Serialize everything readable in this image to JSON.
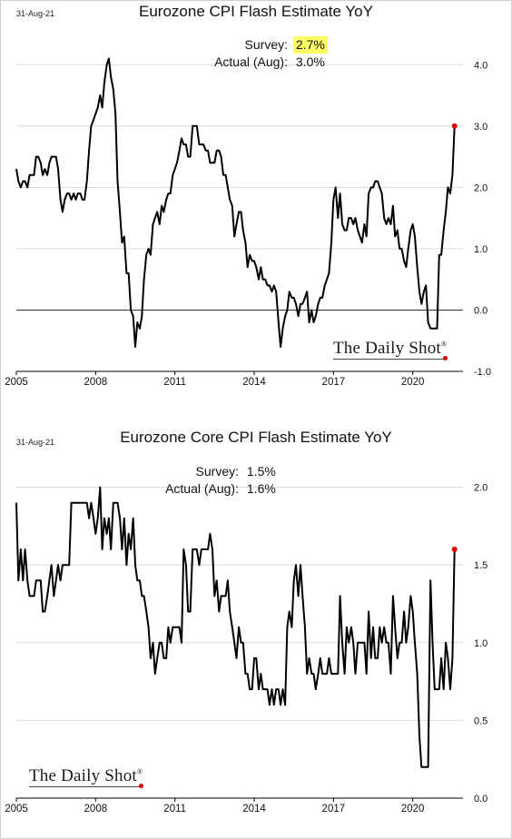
{
  "chart_data": [
    {
      "type": "line",
      "title": "Eurozone CPI Flash Estimate YoY",
      "date_stamp": "31-Aug-21",
      "survey_label": "Survey:",
      "survey_value": "2.7%",
      "actual_label": "Actual (Aug):",
      "actual_value": "3.0%",
      "highlight_survey": true,
      "brand": "The Daily Shot",
      "xlim": [
        2005,
        2021.9
      ],
      "ylim": [
        -1.0,
        4.3
      ],
      "x_ticks": [
        "2005",
        "2008",
        "2011",
        "2014",
        "2017",
        "2020"
      ],
      "y_ticks": [
        "4.0",
        "3.0",
        "2.0",
        "1.0",
        "0.0",
        "-1.0"
      ],
      "zero_line": true,
      "grid": "horizontal",
      "line_color": "#000000",
      "marker_color": "#e00000",
      "series": [
        {
          "x": [
            2005.0,
            2005.08,
            2005.17,
            2005.25,
            2005.33,
            2005.42,
            2005.5,
            2005.58,
            2005.67,
            2005.75,
            2005.83,
            2005.92,
            2006.0,
            2006.08,
            2006.17,
            2006.25,
            2006.33,
            2006.42,
            2006.5,
            2006.58,
            2006.67,
            2006.75,
            2006.83,
            2006.92,
            2007.0,
            2007.08,
            2007.17,
            2007.25,
            2007.33,
            2007.42,
            2007.5,
            2007.58,
            2007.67,
            2007.75,
            2007.83,
            2007.92,
            2008.0,
            2008.08,
            2008.17,
            2008.25,
            2008.33,
            2008.42,
            2008.5,
            2008.58,
            2008.67,
            2008.75,
            2008.83,
            2008.92,
            2009.0,
            2009.08,
            2009.17,
            2009.25,
            2009.33,
            2009.42,
            2009.5,
            2009.58,
            2009.67,
            2009.75,
            2009.83,
            2009.92,
            2010.0,
            2010.08,
            2010.17,
            2010.25,
            2010.33,
            2010.42,
            2010.5,
            2010.58,
            2010.67,
            2010.75,
            2010.83,
            2010.92,
            2011.0,
            2011.08,
            2011.17,
            2011.25,
            2011.33,
            2011.42,
            2011.5,
            2011.58,
            2011.67,
            2011.75,
            2011.83,
            2011.92,
            2012.0,
            2012.08,
            2012.17,
            2012.25,
            2012.33,
            2012.42,
            2012.5,
            2012.58,
            2012.67,
            2012.75,
            2012.83,
            2012.92,
            2013.0,
            2013.08,
            2013.17,
            2013.25,
            2013.33,
            2013.42,
            2013.5,
            2013.58,
            2013.67,
            2013.75,
            2013.83,
            2013.92,
            2014.0,
            2014.08,
            2014.17,
            2014.25,
            2014.33,
            2014.42,
            2014.5,
            2014.58,
            2014.67,
            2014.75,
            2014.83,
            2014.92,
            2015.0,
            2015.08,
            2015.17,
            2015.25,
            2015.33,
            2015.42,
            2015.5,
            2015.58,
            2015.67,
            2015.75,
            2015.83,
            2015.92,
            2016.0,
            2016.08,
            2016.17,
            2016.25,
            2016.33,
            2016.42,
            2016.5,
            2016.58,
            2016.67,
            2016.75,
            2016.83,
            2016.92,
            2017.0,
            2017.08,
            2017.17,
            2017.25,
            2017.33,
            2017.42,
            2017.5,
            2017.58,
            2017.67,
            2017.75,
            2017.83,
            2017.92,
            2018.0,
            2018.08,
            2018.17,
            2018.25,
            2018.33,
            2018.42,
            2018.5,
            2018.58,
            2018.67,
            2018.75,
            2018.83,
            2018.92,
            2019.0,
            2019.08,
            2019.17,
            2019.25,
            2019.33,
            2019.42,
            2019.5,
            2019.58,
            2019.67,
            2019.75,
            2019.83,
            2019.92,
            2020.0,
            2020.08,
            2020.17,
            2020.25,
            2020.33,
            2020.42,
            2020.5,
            2020.58,
            2020.67,
            2020.75,
            2020.83,
            2020.92,
            2021.0,
            2021.08,
            2021.17,
            2021.25,
            2021.33,
            2021.42,
            2021.5,
            2021.58
          ],
          "y": [
            2.3,
            2.1,
            2.0,
            2.1,
            2.1,
            2.0,
            2.2,
            2.2,
            2.2,
            2.5,
            2.5,
            2.4,
            2.2,
            2.3,
            2.2,
            2.4,
            2.5,
            2.5,
            2.5,
            2.3,
            1.8,
            1.6,
            1.8,
            1.9,
            1.9,
            1.8,
            1.9,
            1.8,
            1.9,
            1.9,
            1.8,
            1.8,
            2.1,
            2.6,
            3.0,
            3.1,
            3.2,
            3.3,
            3.5,
            3.3,
            3.7,
            4.0,
            4.1,
            3.8,
            3.6,
            3.2,
            2.1,
            1.6,
            1.1,
            1.2,
            0.6,
            0.6,
            0.0,
            -0.1,
            -0.6,
            -0.2,
            -0.3,
            -0.1,
            0.5,
            0.9,
            1.0,
            0.9,
            1.4,
            1.5,
            1.6,
            1.4,
            1.7,
            1.6,
            1.8,
            1.9,
            1.9,
            2.2,
            2.3,
            2.4,
            2.6,
            2.8,
            2.7,
            2.7,
            2.5,
            2.5,
            3.0,
            3.0,
            3.0,
            2.7,
            2.7,
            2.7,
            2.6,
            2.6,
            2.4,
            2.4,
            2.4,
            2.6,
            2.6,
            2.5,
            2.2,
            2.2,
            2.0,
            1.8,
            1.7,
            1.2,
            1.4,
            1.6,
            1.6,
            1.3,
            1.1,
            0.7,
            0.9,
            0.8,
            0.8,
            0.7,
            0.5,
            0.7,
            0.5,
            0.5,
            0.4,
            0.4,
            0.3,
            0.4,
            0.3,
            -0.2,
            -0.6,
            -0.3,
            -0.1,
            0.0,
            0.3,
            0.2,
            0.2,
            0.1,
            -0.1,
            0.1,
            0.1,
            0.2,
            0.3,
            -0.2,
            0.0,
            -0.2,
            -0.1,
            0.1,
            0.2,
            0.2,
            0.4,
            0.5,
            0.6,
            1.1,
            1.8,
            2.0,
            1.5,
            1.9,
            1.4,
            1.3,
            1.3,
            1.5,
            1.5,
            1.4,
            1.5,
            1.3,
            1.2,
            1.1,
            1.4,
            1.2,
            1.9,
            2.0,
            2.0,
            2.1,
            2.1,
            2.0,
            1.9,
            1.5,
            1.4,
            1.5,
            1.4,
            1.7,
            1.2,
            1.3,
            1.0,
            1.0,
            0.8,
            0.7,
            1.0,
            1.3,
            1.4,
            1.2,
            0.7,
            0.3,
            0.1,
            0.3,
            0.4,
            -0.2,
            -0.3,
            -0.3,
            -0.3,
            -0.3,
            0.9,
            0.9,
            1.3,
            1.6,
            2.0,
            1.9,
            2.2,
            3.0
          ]
        }
      ]
    },
    {
      "type": "line",
      "title": "Eurozone Core CPI Flash Estimate YoY",
      "date_stamp": "31-Aug-21",
      "survey_label": "Survey:",
      "survey_value": "1.5%",
      "actual_label": "Actual (Aug):",
      "actual_value": "1.6%",
      "highlight_survey": false,
      "brand": "The Daily Shot",
      "xlim": [
        2005,
        2021.9
      ],
      "ylim": [
        0.0,
        2.05
      ],
      "x_ticks": [
        "2005",
        "2008",
        "2011",
        "2014",
        "2017",
        "2020"
      ],
      "y_ticks": [
        "2.0",
        "1.5",
        "1.0",
        "0.5",
        "0.0"
      ],
      "zero_line": false,
      "grid": "horizontal",
      "line_color": "#000000",
      "marker_color": "#e00000",
      "series": [
        {
          "x": [
            2005.0,
            2005.08,
            2005.17,
            2005.25,
            2005.33,
            2005.42,
            2005.5,
            2005.58,
            2005.67,
            2005.75,
            2005.83,
            2005.92,
            2006.0,
            2006.08,
            2006.17,
            2006.25,
            2006.33,
            2006.42,
            2006.5,
            2006.58,
            2006.67,
            2006.75,
            2006.83,
            2006.92,
            2007.0,
            2007.08,
            2007.17,
            2007.25,
            2007.33,
            2007.42,
            2007.5,
            2007.58,
            2007.67,
            2007.75,
            2007.83,
            2007.92,
            2008.0,
            2008.08,
            2008.17,
            2008.25,
            2008.33,
            2008.42,
            2008.5,
            2008.58,
            2008.67,
            2008.75,
            2008.83,
            2008.92,
            2009.0,
            2009.08,
            2009.17,
            2009.25,
            2009.33,
            2009.42,
            2009.5,
            2009.58,
            2009.67,
            2009.75,
            2009.83,
            2009.92,
            2010.0,
            2010.08,
            2010.17,
            2010.25,
            2010.33,
            2010.42,
            2010.5,
            2010.58,
            2010.67,
            2010.75,
            2010.83,
            2010.92,
            2011.0,
            2011.08,
            2011.17,
            2011.25,
            2011.33,
            2011.42,
            2011.5,
            2011.58,
            2011.67,
            2011.75,
            2011.83,
            2011.92,
            2012.0,
            2012.08,
            2012.17,
            2012.25,
            2012.33,
            2012.42,
            2012.5,
            2012.58,
            2012.67,
            2012.75,
            2012.83,
            2012.92,
            2013.0,
            2013.08,
            2013.17,
            2013.25,
            2013.33,
            2013.42,
            2013.5,
            2013.58,
            2013.67,
            2013.75,
            2013.83,
            2013.92,
            2014.0,
            2014.08,
            2014.17,
            2014.25,
            2014.33,
            2014.42,
            2014.5,
            2014.58,
            2014.67,
            2014.75,
            2014.83,
            2014.92,
            2015.0,
            2015.08,
            2015.17,
            2015.25,
            2015.33,
            2015.42,
            2015.5,
            2015.58,
            2015.67,
            2015.75,
            2015.83,
            2015.92,
            2016.0,
            2016.08,
            2016.17,
            2016.25,
            2016.33,
            2016.42,
            2016.5,
            2016.58,
            2016.67,
            2016.75,
            2016.83,
            2016.92,
            2017.0,
            2017.08,
            2017.17,
            2017.25,
            2017.33,
            2017.42,
            2017.5,
            2017.58,
            2017.67,
            2017.75,
            2017.83,
            2017.92,
            2018.0,
            2018.08,
            2018.17,
            2018.25,
            2018.33,
            2018.42,
            2018.5,
            2018.58,
            2018.67,
            2018.75,
            2018.83,
            2018.92,
            2019.0,
            2019.08,
            2019.17,
            2019.25,
            2019.33,
            2019.42,
            2019.5,
            2019.58,
            2019.67,
            2019.75,
            2019.83,
            2019.92,
            2020.0,
            2020.08,
            2020.17,
            2020.25,
            2020.33,
            2020.42,
            2020.5,
            2020.58,
            2020.67,
            2020.75,
            2020.83,
            2020.92,
            2021.0,
            2021.08,
            2021.17,
            2021.25,
            2021.33,
            2021.42,
            2021.5,
            2021.58
          ],
          "y": [
            1.9,
            1.4,
            1.6,
            1.4,
            1.6,
            1.4,
            1.3,
            1.3,
            1.3,
            1.4,
            1.4,
            1.4,
            1.2,
            1.2,
            1.3,
            1.4,
            1.5,
            1.3,
            1.4,
            1.5,
            1.4,
            1.5,
            1.5,
            1.5,
            1.5,
            1.9,
            1.9,
            1.9,
            1.9,
            1.9,
            1.9,
            1.9,
            1.9,
            1.8,
            1.9,
            1.8,
            1.7,
            1.8,
            2.0,
            1.6,
            1.8,
            1.7,
            1.8,
            1.6,
            1.9,
            1.9,
            1.9,
            1.8,
            1.6,
            1.8,
            1.5,
            1.7,
            1.6,
            1.8,
            1.5,
            1.4,
            1.4,
            1.3,
            1.3,
            1.2,
            1.1,
            0.9,
            1.0,
            0.8,
            0.9,
            1.0,
            1.0,
            0.9,
            0.9,
            1.1,
            1.0,
            1.1,
            1.1,
            1.1,
            1.1,
            1.0,
            1.6,
            1.5,
            1.2,
            1.2,
            1.6,
            1.6,
            1.6,
            1.5,
            1.6,
            1.6,
            1.6,
            1.6,
            1.7,
            1.6,
            1.3,
            1.4,
            1.2,
            1.3,
            1.3,
            1.3,
            1.4,
            1.2,
            1.1,
            1.0,
            0.9,
            1.1,
            1.0,
            1.0,
            0.8,
            0.8,
            0.7,
            0.7,
            0.9,
            0.9,
            0.7,
            0.8,
            0.7,
            0.7,
            0.7,
            0.6,
            0.7,
            0.6,
            0.7,
            0.7,
            0.6,
            0.7,
            0.6,
            1.1,
            1.2,
            1.1,
            1.4,
            1.5,
            1.3,
            1.5,
            1.3,
            1.1,
            0.8,
            0.9,
            0.8,
            0.8,
            0.7,
            0.8,
            0.9,
            0.8,
            0.8,
            0.8,
            0.9,
            0.8,
            0.8,
            0.8,
            0.8,
            1.3,
            1.0,
            0.8,
            1.1,
            1.0,
            1.1,
            1.0,
            0.8,
            1.0,
            1.0,
            1.0,
            1.0,
            0.8,
            1.2,
            0.9,
            1.1,
            0.9,
            0.9,
            1.1,
            1.0,
            1.1,
            1.0,
            1.0,
            0.8,
            1.3,
            1.1,
            0.9,
            1.0,
            1.0,
            1.2,
            1.0,
            1.1,
            1.3,
            1.2,
            1.0,
            0.8,
            0.4,
            0.2,
            0.2,
            0.2,
            0.2,
            1.4,
            1.0,
            0.7,
            0.7,
            0.7,
            0.9,
            0.7,
            1.0,
            0.9,
            0.7,
            0.9,
            1.6
          ]
        }
      ]
    }
  ]
}
